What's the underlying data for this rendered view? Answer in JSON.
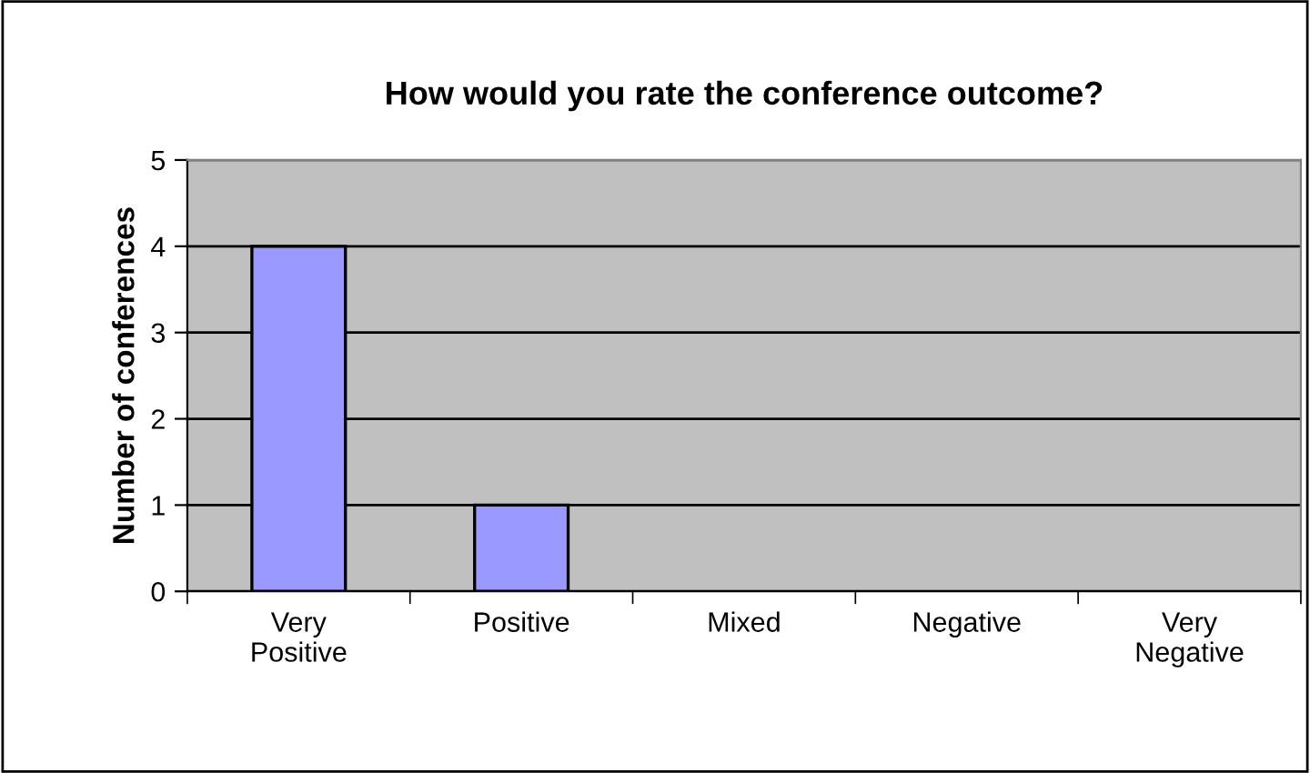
{
  "chart_data": {
    "type": "bar",
    "title": "How would you rate the conference outcome?",
    "ylabel": "Number of conferences",
    "categories": [
      "Very\nPositive",
      "Positive",
      "Mixed",
      "Negative",
      "Very\nNegative"
    ],
    "values": [
      4,
      1,
      0,
      0,
      0
    ],
    "color": "#9999ff",
    "ylim": [
      0,
      5
    ],
    "yticks": [
      0,
      1,
      2,
      3,
      4,
      5
    ],
    "grid": "y"
  }
}
